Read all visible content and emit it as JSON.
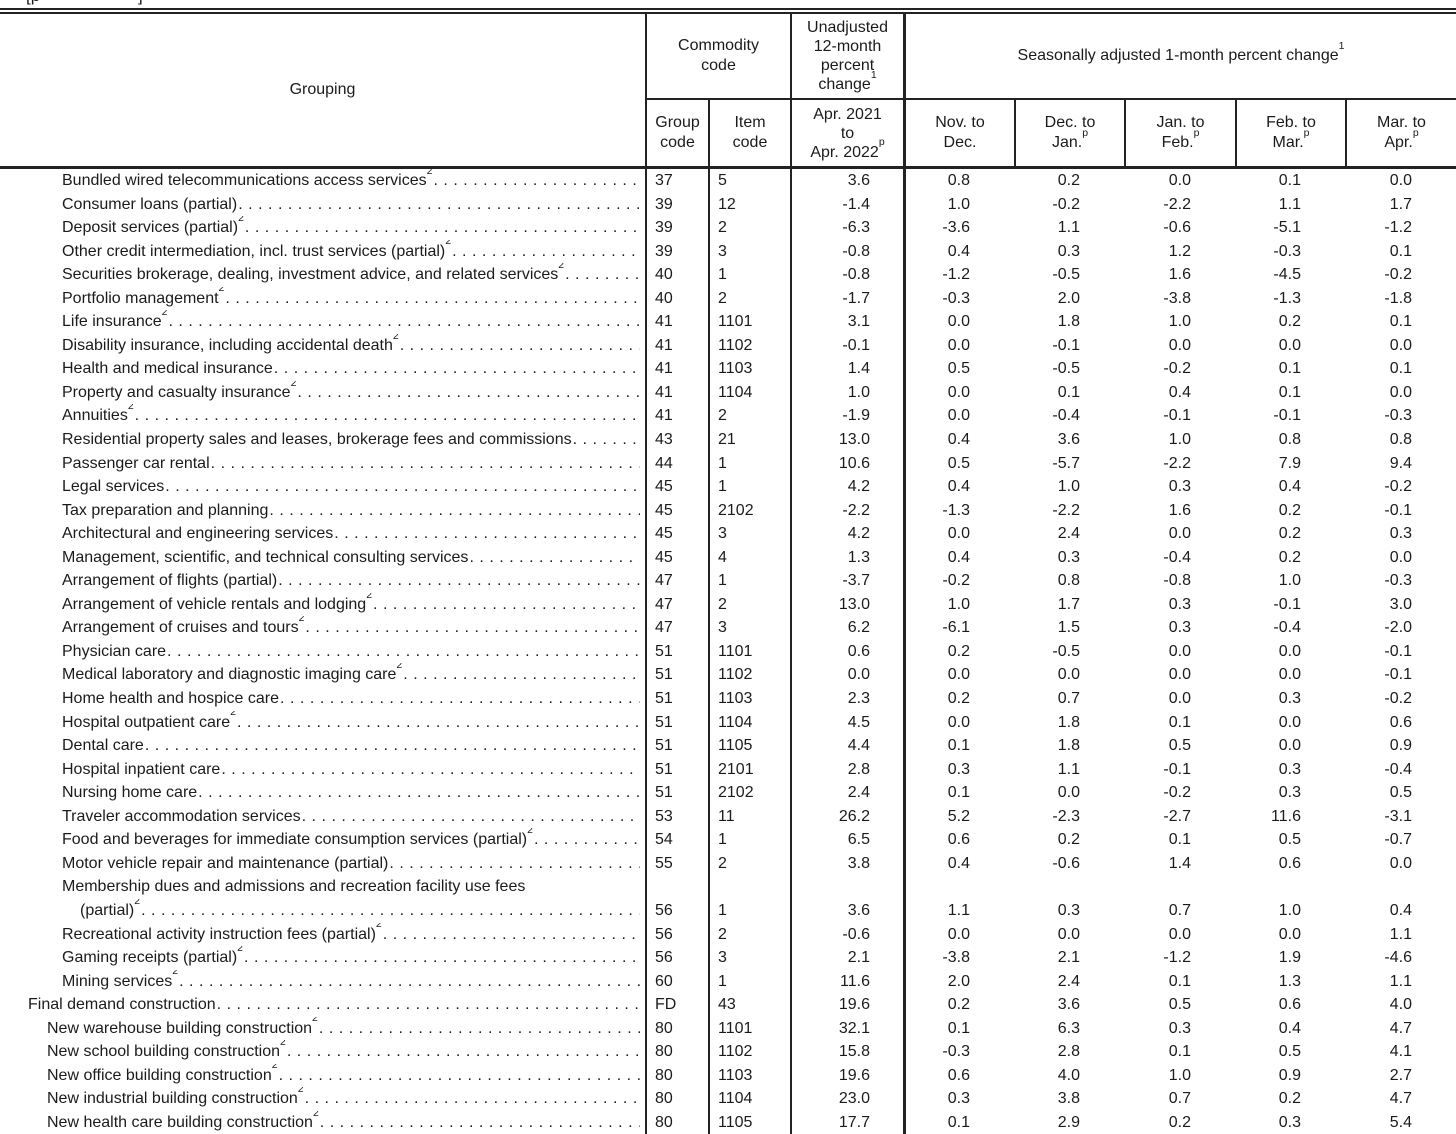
{
  "colors": {
    "text": "#1b1b1b",
    "border": "#232323",
    "background": "#ffffff"
  },
  "page": {
    "top_fragment_left": "[p",
    "top_fragment_right": "]"
  },
  "header": {
    "grouping": "Grouping",
    "commodity": {
      "line1": "Commodity",
      "line2": "code"
    },
    "unadjusted": {
      "lines": [
        "Unadjusted",
        "12-month",
        "percent",
        "change"
      ],
      "sup": "1"
    },
    "seasonal": {
      "text": "Seasonally adjusted 1-month percent change",
      "sup": "1"
    },
    "group_code": {
      "line1": "Group",
      "line2": "code"
    },
    "item_code": {
      "line1": "Item",
      "line2": "code"
    },
    "unadjusted_period": {
      "line1": "Apr. 2021",
      "line2": "to",
      "line3": "Apr. 2022",
      "sup": "p"
    },
    "months": [
      {
        "line1": "Nov. to",
        "line2": "Dec.",
        "sup": ""
      },
      {
        "line1": "Dec. to",
        "line2": "Jan.",
        "sup": "p"
      },
      {
        "line1": "Jan. to",
        "line2": "Feb.",
        "sup": "p"
      },
      {
        "line1": "Feb. to",
        "line2": "Mar.",
        "sup": "p"
      },
      {
        "line1": "Mar. to",
        "line2": "Apr.",
        "sup": "p"
      }
    ]
  },
  "rows": [
    {
      "label": "Bundled wired telecommunications access services",
      "sup": "2",
      "indent": 3,
      "group": "37",
      "item": "5",
      "u12": "3.6",
      "m": [
        "0.8",
        "0.2",
        "0.0",
        "0.1",
        "0.0"
      ]
    },
    {
      "label": "Consumer loans (partial)",
      "sup": "",
      "indent": 3,
      "group": "39",
      "item": "12",
      "u12": "-1.4",
      "m": [
        "1.0",
        "-0.2",
        "-2.2",
        "1.1",
        "1.7"
      ]
    },
    {
      "label": "Deposit services (partial)",
      "sup": "2",
      "indent": 3,
      "group": "39",
      "item": "2",
      "u12": "-6.3",
      "m": [
        "-3.6",
        "1.1",
        "-0.6",
        "-5.1",
        "-1.2"
      ]
    },
    {
      "label": "Other credit intermediation, incl. trust services (partial)",
      "sup": "2",
      "indent": 3,
      "group": "39",
      "item": "3",
      "u12": "-0.8",
      "m": [
        "0.4",
        "0.3",
        "1.2",
        "-0.3",
        "0.1"
      ]
    },
    {
      "label": "Securities brokerage, dealing, investment advice, and related services",
      "sup": "2",
      "indent": 3,
      "group": "40",
      "item": "1",
      "u12": "-0.8",
      "m": [
        "-1.2",
        "-0.5",
        "1.6",
        "-4.5",
        "-0.2"
      ]
    },
    {
      "label": "Portfolio management",
      "sup": "2",
      "indent": 3,
      "group": "40",
      "item": "2",
      "u12": "-1.7",
      "m": [
        "-0.3",
        "2.0",
        "-3.8",
        "-1.3",
        "-1.8"
      ]
    },
    {
      "label": "Life insurance",
      "sup": "2",
      "indent": 3,
      "group": "41",
      "item": "1101",
      "u12": "3.1",
      "m": [
        "0.0",
        "1.8",
        "1.0",
        "0.2",
        "0.1"
      ]
    },
    {
      "label": "Disability insurance, including accidental death",
      "sup": "2",
      "indent": 3,
      "group": "41",
      "item": "1102",
      "u12": "-0.1",
      "m": [
        "0.0",
        "-0.1",
        "0.0",
        "0.0",
        "0.0"
      ]
    },
    {
      "label": "Health and medical insurance",
      "sup": "",
      "indent": 3,
      "group": "41",
      "item": "1103",
      "u12": "1.4",
      "m": [
        "0.5",
        "-0.5",
        "-0.2",
        "0.1",
        "0.1"
      ]
    },
    {
      "label": "Property and casualty insurance",
      "sup": "2",
      "indent": 3,
      "group": "41",
      "item": "1104",
      "u12": "1.0",
      "m": [
        "0.0",
        "0.1",
        "0.4",
        "0.1",
        "0.0"
      ]
    },
    {
      "label": "Annuities",
      "sup": "2",
      "indent": 3,
      "group": "41",
      "item": "2",
      "u12": "-1.9",
      "m": [
        "0.0",
        "-0.4",
        "-0.1",
        "-0.1",
        "-0.3"
      ]
    },
    {
      "label": "Residential property sales and leases, brokerage fees and commissions",
      "sup": "",
      "indent": 3,
      "group": "43",
      "item": "21",
      "u12": "13.0",
      "m": [
        "0.4",
        "3.6",
        "1.0",
        "0.8",
        "0.8"
      ]
    },
    {
      "label": "Passenger car rental",
      "sup": "",
      "indent": 3,
      "group": "44",
      "item": "1",
      "u12": "10.6",
      "m": [
        "0.5",
        "-5.7",
        "-2.2",
        "7.9",
        "9.4"
      ]
    },
    {
      "label": "Legal services",
      "sup": "",
      "indent": 3,
      "group": "45",
      "item": "1",
      "u12": "4.2",
      "m": [
        "0.4",
        "1.0",
        "0.3",
        "0.4",
        "-0.2"
      ]
    },
    {
      "label": "Tax preparation and planning",
      "sup": "",
      "indent": 3,
      "group": "45",
      "item": "2102",
      "u12": "-2.2",
      "m": [
        "-1.3",
        "-2.2",
        "1.6",
        "0.2",
        "-0.1"
      ]
    },
    {
      "label": "Architectural and engineering services",
      "sup": "",
      "indent": 3,
      "group": "45",
      "item": "3",
      "u12": "4.2",
      "m": [
        "0.0",
        "2.4",
        "0.0",
        "0.2",
        "0.3"
      ]
    },
    {
      "label": "Management, scientific, and technical consulting services",
      "sup": "",
      "indent": 3,
      "group": "45",
      "item": "4",
      "u12": "1.3",
      "m": [
        "0.4",
        "0.3",
        "-0.4",
        "0.2",
        "0.0"
      ]
    },
    {
      "label": "Arrangement of flights (partial)",
      "sup": "",
      "indent": 3,
      "group": "47",
      "item": "1",
      "u12": "-3.7",
      "m": [
        "-0.2",
        "0.8",
        "-0.8",
        "1.0",
        "-0.3"
      ]
    },
    {
      "label": "Arrangement of vehicle rentals and lodging",
      "sup": "2",
      "indent": 3,
      "group": "47",
      "item": "2",
      "u12": "13.0",
      "m": [
        "1.0",
        "1.7",
        "0.3",
        "-0.1",
        "3.0"
      ]
    },
    {
      "label": "Arrangement of cruises and tours",
      "sup": "2",
      "indent": 3,
      "group": "47",
      "item": "3",
      "u12": "6.2",
      "m": [
        "-6.1",
        "1.5",
        "0.3",
        "-0.4",
        "-2.0"
      ]
    },
    {
      "label": "Physician care",
      "sup": "",
      "indent": 3,
      "group": "51",
      "item": "1101",
      "u12": "0.6",
      "m": [
        "0.2",
        "-0.5",
        "0.0",
        "0.0",
        "-0.1"
      ]
    },
    {
      "label": "Medical laboratory and diagnostic imaging care",
      "sup": "2",
      "indent": 3,
      "group": "51",
      "item": "1102",
      "u12": "0.0",
      "m": [
        "0.0",
        "0.0",
        "0.0",
        "0.0",
        "-0.1"
      ]
    },
    {
      "label": "Home health and hospice care",
      "sup": "",
      "indent": 3,
      "group": "51",
      "item": "1103",
      "u12": "2.3",
      "m": [
        "0.2",
        "0.7",
        "0.0",
        "0.3",
        "-0.2"
      ]
    },
    {
      "label": "Hospital outpatient care",
      "sup": "2",
      "indent": 3,
      "group": "51",
      "item": "1104",
      "u12": "4.5",
      "m": [
        "0.0",
        "1.8",
        "0.1",
        "0.0",
        "0.6"
      ]
    },
    {
      "label": "Dental care",
      "sup": "",
      "indent": 3,
      "group": "51",
      "item": "1105",
      "u12": "4.4",
      "m": [
        "0.1",
        "1.8",
        "0.5",
        "0.0",
        "0.9"
      ]
    },
    {
      "label": "Hospital inpatient care",
      "sup": "",
      "indent": 3,
      "group": "51",
      "item": "2101",
      "u12": "2.8",
      "m": [
        "0.3",
        "1.1",
        "-0.1",
        "0.3",
        "-0.4"
      ]
    },
    {
      "label": "Nursing home care",
      "sup": "",
      "indent": 3,
      "group": "51",
      "item": "2102",
      "u12": "2.4",
      "m": [
        "0.1",
        "0.0",
        "-0.2",
        "0.3",
        "0.5"
      ]
    },
    {
      "label": "Traveler accommodation services",
      "sup": "",
      "indent": 3,
      "group": "53",
      "item": "11",
      "u12": "26.2",
      "m": [
        "5.2",
        "-2.3",
        "-2.7",
        "11.6",
        "-3.1"
      ]
    },
    {
      "label": "Food and beverages for immediate consumption services (partial)",
      "sup": "2",
      "indent": 3,
      "group": "54",
      "item": "1",
      "u12": "6.5",
      "m": [
        "0.6",
        "0.2",
        "0.1",
        "0.5",
        "-0.7"
      ]
    },
    {
      "label": "Motor vehicle repair and maintenance (partial)",
      "sup": "",
      "indent": 3,
      "group": "55",
      "item": "2",
      "u12": "3.8",
      "m": [
        "0.4",
        "-0.6",
        "1.4",
        "0.6",
        "0.0"
      ]
    },
    {
      "label": "Membership dues and admissions and recreation facility use fees",
      "sup": "",
      "label2": "(partial)",
      "sup2": "2",
      "indent": 3,
      "group": "56",
      "item": "1",
      "u12": "3.6",
      "m": [
        "1.1",
        "0.3",
        "0.7",
        "1.0",
        "0.4"
      ]
    },
    {
      "label": "Recreational activity instruction fees (partial)",
      "sup": "2",
      "indent": 3,
      "group": "56",
      "item": "2",
      "u12": "-0.6",
      "m": [
        "0.0",
        "0.0",
        "0.0",
        "0.0",
        "1.1"
      ]
    },
    {
      "label": "Gaming receipts (partial)",
      "sup": "2",
      "indent": 3,
      "group": "56",
      "item": "3",
      "u12": "2.1",
      "m": [
        "-3.8",
        "2.1",
        "-1.2",
        "1.9",
        "-4.6"
      ]
    },
    {
      "label": "Mining services",
      "sup": "2",
      "indent": 3,
      "group": "60",
      "item": "1",
      "u12": "11.6",
      "m": [
        "2.0",
        "2.4",
        "0.1",
        "1.3",
        "1.1"
      ]
    },
    {
      "label": "Final demand construction",
      "sup": "",
      "indent": 1,
      "group": "FD",
      "item": "43",
      "u12": "19.6",
      "m": [
        "0.2",
        "3.6",
        "0.5",
        "0.6",
        "4.0"
      ]
    },
    {
      "label": "New warehouse building construction",
      "sup": "2",
      "indent": 2,
      "group": "80",
      "item": "1101",
      "u12": "32.1",
      "m": [
        "0.1",
        "6.3",
        "0.3",
        "0.4",
        "4.7"
      ]
    },
    {
      "label": "New school building construction",
      "sup": "2",
      "indent": 2,
      "group": "80",
      "item": "1102",
      "u12": "15.8",
      "m": [
        "-0.3",
        "2.8",
        "0.1",
        "0.5",
        "4.1"
      ]
    },
    {
      "label": "New office building construction",
      "sup": "2",
      "indent": 2,
      "group": "80",
      "item": "1103",
      "u12": "19.6",
      "m": [
        "0.6",
        "4.0",
        "1.0",
        "0.9",
        "2.7"
      ]
    },
    {
      "label": "New industrial building construction",
      "sup": "2",
      "indent": 2,
      "group": "80",
      "item": "1104",
      "u12": "23.0",
      "m": [
        "0.3",
        "3.8",
        "0.7",
        "0.2",
        "4.7"
      ]
    },
    {
      "label": "New health care building construction",
      "sup": "2",
      "indent": 2,
      "group": "80",
      "item": "1105",
      "u12": "17.7",
      "m": [
        "0.1",
        "2.9",
        "0.2",
        "0.3",
        "5.4"
      ]
    }
  ]
}
